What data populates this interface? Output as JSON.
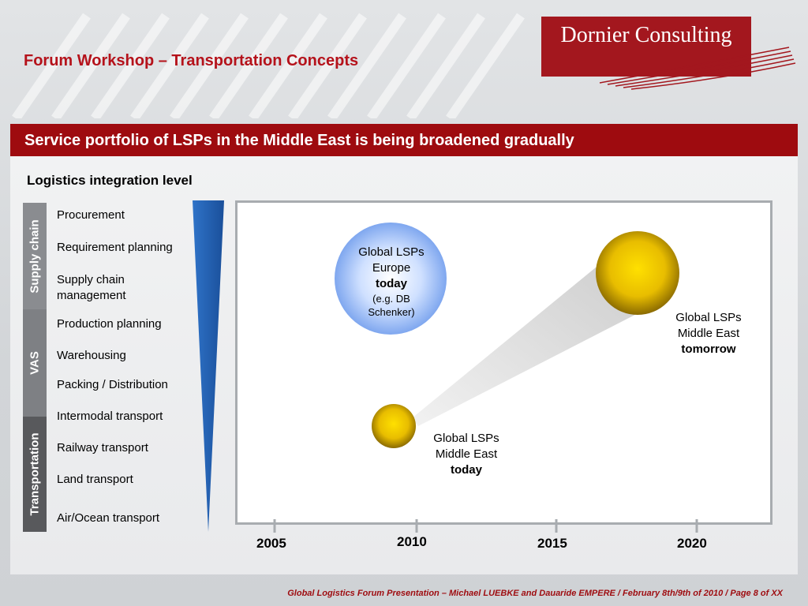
{
  "header": {
    "title": "Forum Workshop – Transportation Concepts",
    "logo_text": "Dornier Consulting"
  },
  "banner": {
    "text": "Service portfolio of LSPs in the Middle East is being broadened gradually"
  },
  "chart": {
    "axis_label": "Logistics integration level",
    "categories": [
      "Supply chain",
      "VAS",
      "Transportation"
    ],
    "levels": [
      "Procurement",
      "Requirement planning",
      "Supply chain management",
      "Production planning",
      "Warehousing",
      "Packing / Distribution",
      "Intermodal transport",
      "Railway transport",
      "Land transport",
      "Air/Ocean transport"
    ],
    "years": [
      "2005",
      "2010",
      "2015",
      "2020"
    ],
    "bubbles": [
      {
        "line1": "Global LSPs",
        "line2": "Europe",
        "emphasis": "today",
        "note": "(e.g. DB Schenker)"
      },
      {
        "line1": "Global LSPs",
        "line2": "Middle East",
        "emphasis": "tomorrow"
      },
      {
        "line1": "Global LSPs",
        "line2": "Middle East",
        "emphasis": "today"
      }
    ]
  },
  "colors": {
    "brand_red": "#9e0b0f",
    "bubble_blue": "#a9c7ff",
    "bubble_gold": "#e8c200",
    "wedge_blue": "#1a5fb4",
    "category_grey": "#7a7c80"
  },
  "footer": {
    "text": "Global Logistics Forum Presentation – Michael LUEBKE and Dauaride EMPERE / February 8th/9th of 2010 / Page 8 of XX"
  }
}
